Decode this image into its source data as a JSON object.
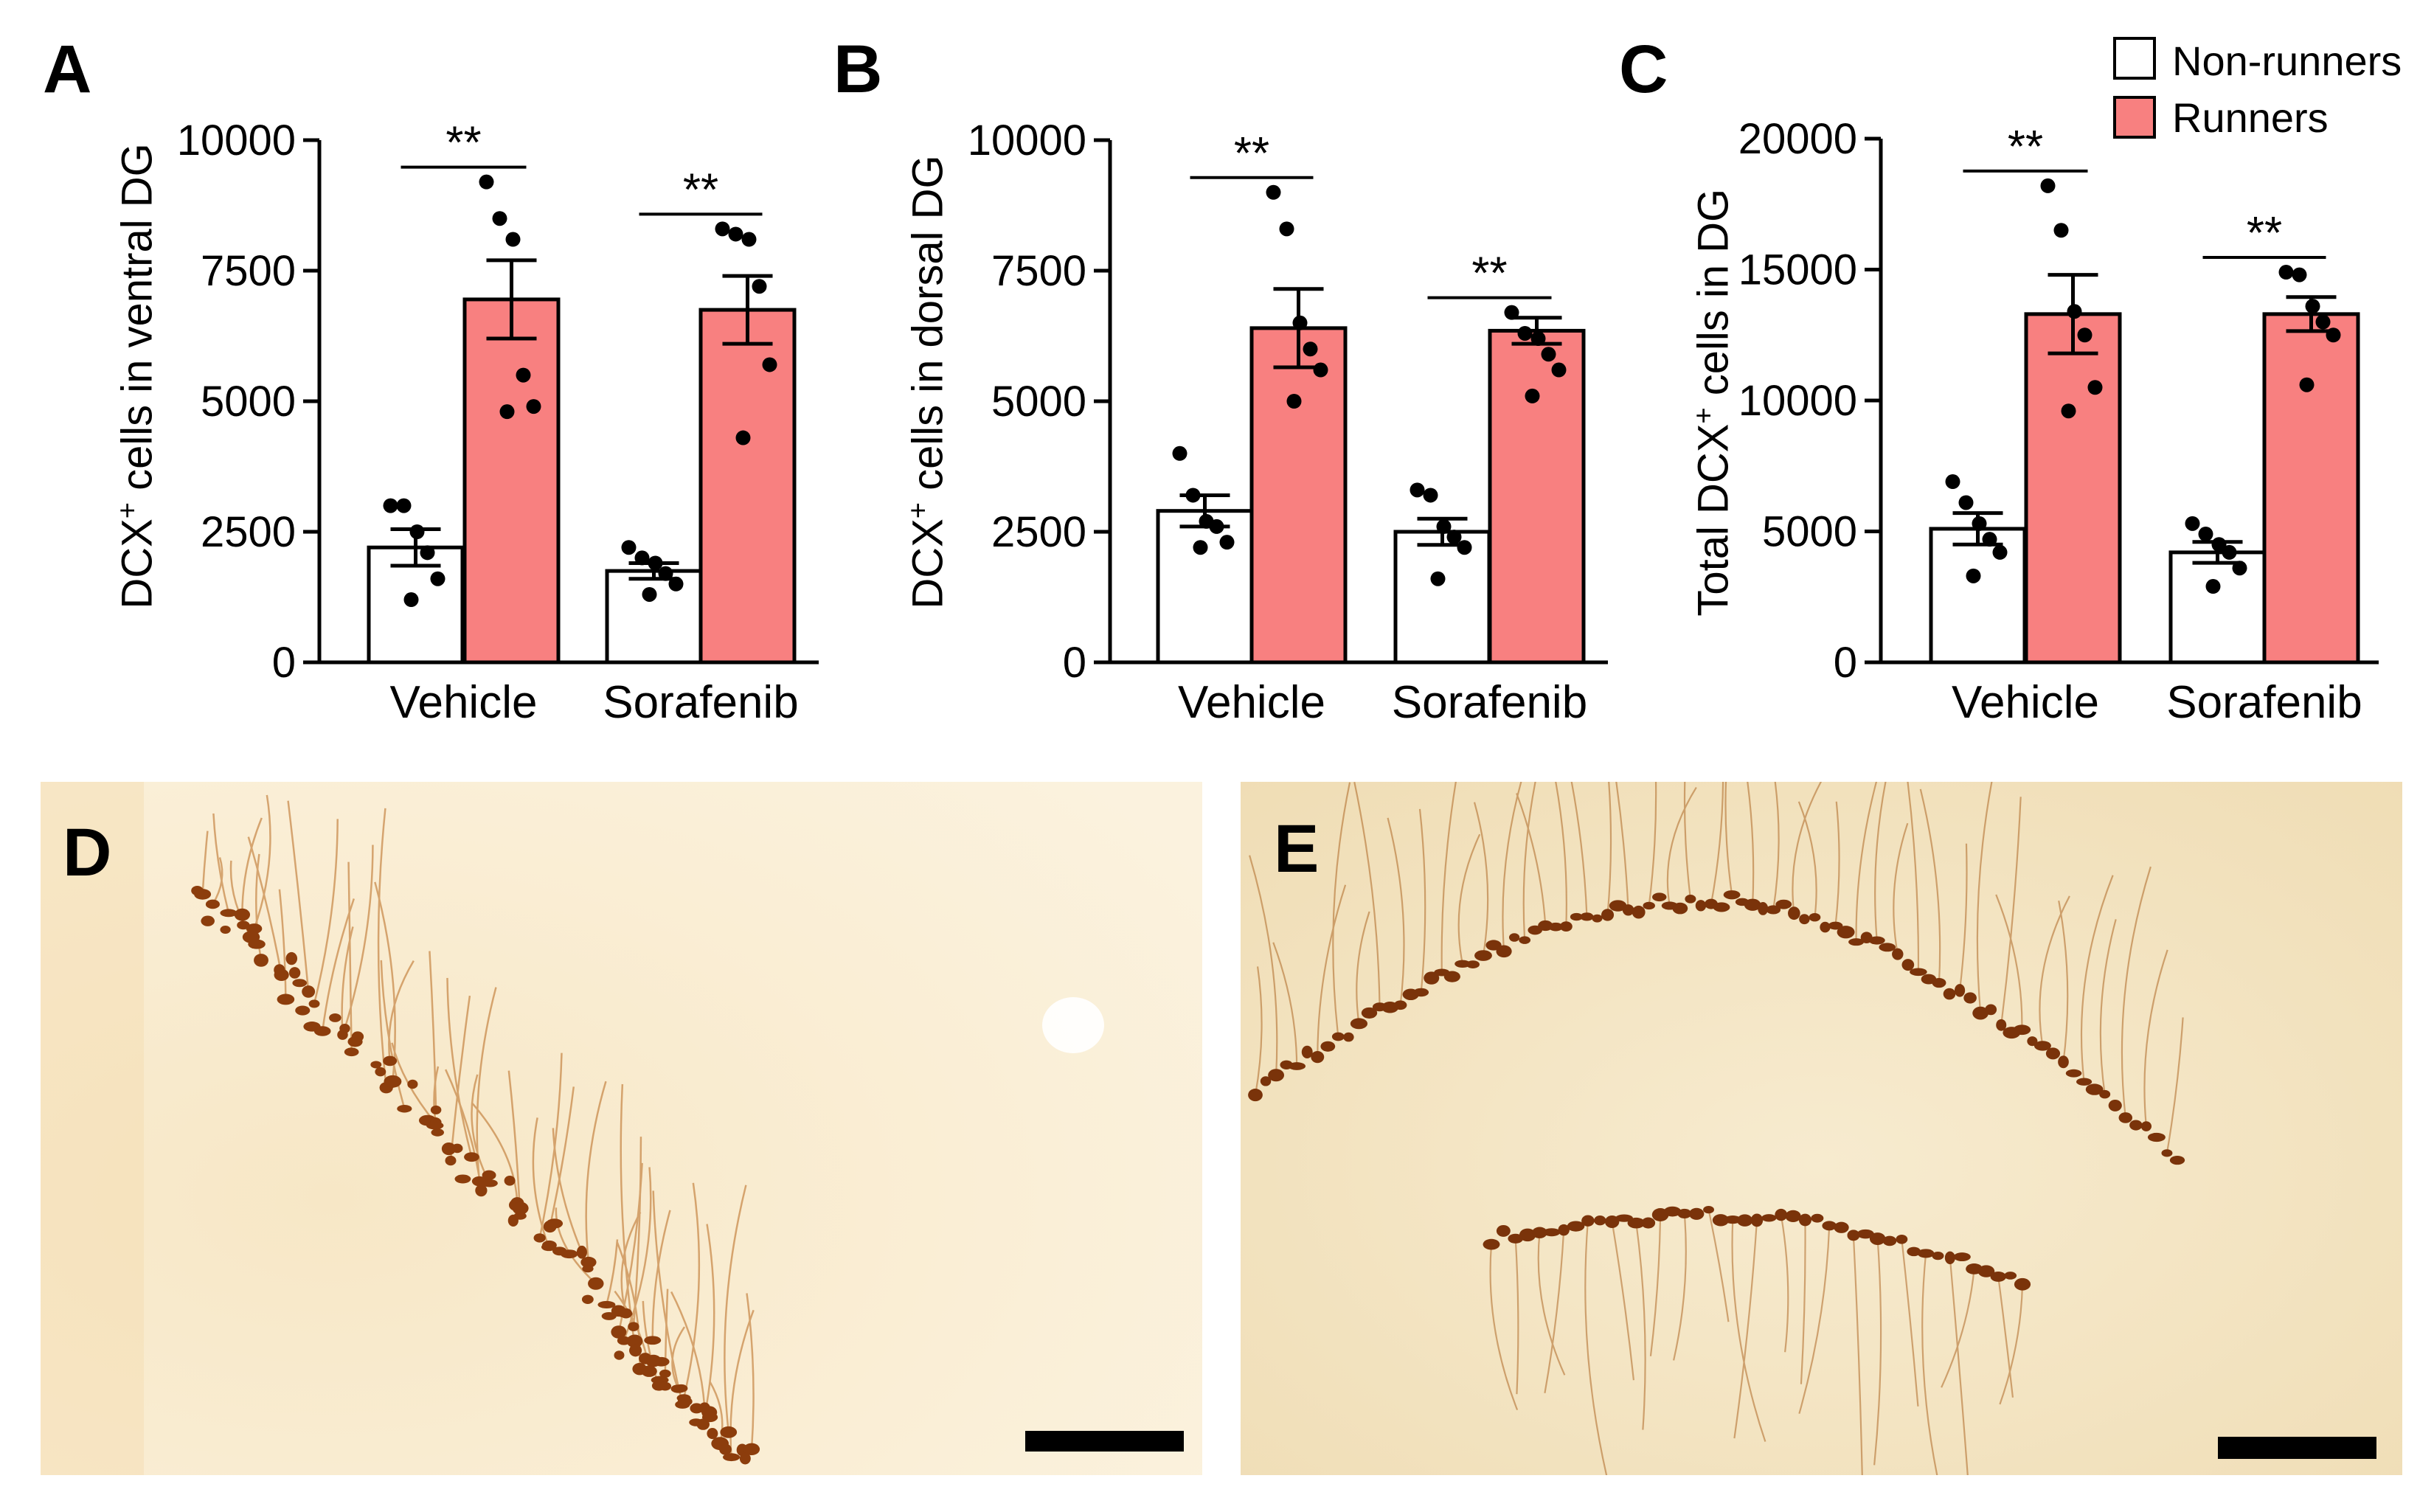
{
  "legend": {
    "entries": [
      {
        "name": "Non-runners",
        "color": "#ffffff"
      },
      {
        "name": "Runners",
        "color": "#f88080"
      }
    ]
  },
  "panels": {
    "A": "A",
    "B": "B",
    "C": "C",
    "D": "D",
    "E": "E"
  },
  "ylabels": {
    "A": {
      "pre": "DCX",
      "sup": "+",
      "post": " cells in ventral DG"
    },
    "B": {
      "pre": "DCX",
      "sup": "+",
      "post": " cells in dorsal DG"
    },
    "C": {
      "pre": "Total DCX",
      "sup": "+",
      "post": " cells in DG"
    }
  },
  "significance_marker": "**",
  "chart_data": [
    {
      "type": "bar",
      "panel": "A",
      "categories": [
        "Vehicle",
        "Sorafenib"
      ],
      "ylim": [
        0,
        10000
      ],
      "yticks": [
        "0",
        "2500",
        "5000",
        "7500",
        "10000"
      ],
      "ytick_values": [
        0,
        2500,
        5000,
        7500,
        10000
      ],
      "series": [
        {
          "name": "Non-runners",
          "values": [
            2200,
            1750
          ],
          "sem": [
            350,
            150
          ],
          "points": [
            [
              3000,
              3000,
              2500,
              2100,
              1600,
              1200
            ],
            [
              2200,
              2000,
              1900,
              1700,
              1500,
              1300
            ]
          ]
        },
        {
          "name": "Runners",
          "values": [
            6950,
            6750
          ],
          "sem": [
            750,
            650
          ],
          "points": [
            [
              9200,
              8500,
              8100,
              5500,
              4900,
              4800
            ],
            [
              8300,
              8200,
              8100,
              7200,
              5700,
              4300
            ]
          ]
        }
      ],
      "significance": [
        "**",
        "**"
      ]
    },
    {
      "type": "bar",
      "panel": "B",
      "categories": [
        "Vehicle",
        "Sorafenib"
      ],
      "ylim": [
        0,
        10000
      ],
      "yticks": [
        "0",
        "2500",
        "5000",
        "7500",
        "10000"
      ],
      "ytick_values": [
        0,
        2500,
        5000,
        7500,
        10000
      ],
      "series": [
        {
          "name": "Non-runners",
          "values": [
            2900,
            2500
          ],
          "sem": [
            300,
            250
          ],
          "points": [
            [
              4000,
              3200,
              2700,
              2600,
              2300,
              2200
            ],
            [
              3300,
              3200,
              2600,
              2400,
              2200,
              1600
            ]
          ]
        },
        {
          "name": "Runners",
          "values": [
            6400,
            6350
          ],
          "sem": [
            750,
            250
          ],
          "points": [
            [
              9000,
              8300,
              6500,
              6000,
              5600,
              5000
            ],
            [
              6700,
              6300,
              6200,
              5900,
              5600,
              5100
            ]
          ]
        }
      ],
      "significance": [
        "**",
        "**"
      ]
    },
    {
      "type": "bar",
      "panel": "C",
      "categories": [
        "Vehicle",
        "Sorafenib"
      ],
      "ylim": [
        0,
        20000
      ],
      "yticks": [
        "0",
        "5000",
        "10000",
        "15000",
        "20000"
      ],
      "ytick_values": [
        0,
        5000,
        10000,
        15000,
        20000
      ],
      "series": [
        {
          "name": "Non-runners",
          "values": [
            5100,
            4200
          ],
          "sem": [
            600,
            400
          ],
          "points": [
            [
              6900,
              6100,
              5300,
              4700,
              4200,
              3300
            ],
            [
              5300,
              4900,
              4500,
              4200,
              3600,
              2900
            ]
          ]
        },
        {
          "name": "Runners",
          "values": [
            13300,
            13300
          ],
          "sem": [
            1500,
            650
          ],
          "points": [
            [
              18200,
              16500,
              13400,
              12500,
              10500,
              9600
            ],
            [
              14900,
              14800,
              13600,
              13000,
              12500,
              10600
            ]
          ]
        }
      ],
      "significance": [
        "**",
        "**"
      ]
    }
  ]
}
